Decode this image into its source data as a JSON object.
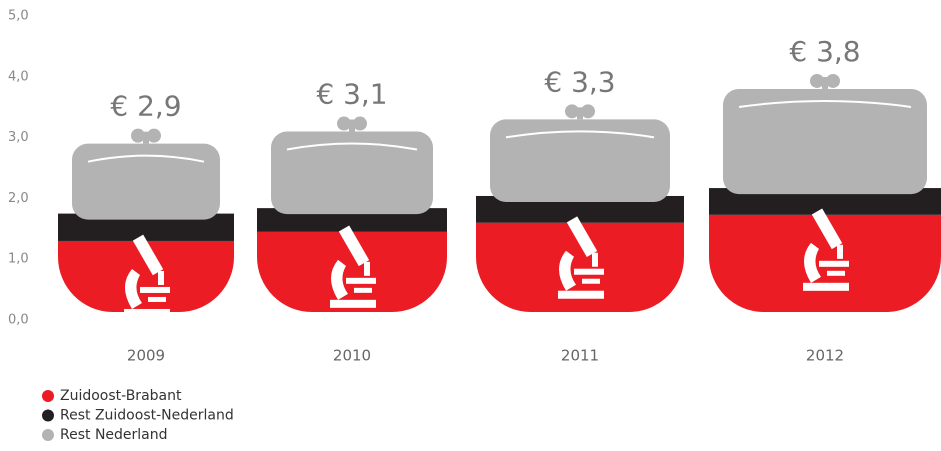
{
  "chart_data": {
    "type": "purse-stack",
    "categories": [
      "2009",
      "2010",
      "2011",
      "2012"
    ],
    "series": [
      {
        "name": "Zuidoost-Brabant",
        "color": "#ec1c24",
        "values": [
          1.3,
          1.45,
          1.6,
          1.73
        ]
      },
      {
        "name": "Rest Zuidoost-Nederland",
        "color": "#231f20",
        "values": [
          0.45,
          0.39,
          0.44,
          0.44
        ]
      },
      {
        "name": "Rest  Nederland",
        "color": "#b3b3b3",
        "values": [
          1.15,
          1.26,
          1.26,
          1.63
        ]
      }
    ],
    "totals": [
      2.9,
      3.1,
      3.3,
      3.8
    ],
    "total_labels": [
      "€ 2,9",
      "€ 3,1",
      "€ 3,3",
      "€ 3,8"
    ],
    "ylim": [
      0,
      5
    ],
    "yticks": [
      {
        "value": 0,
        "label": "0,0"
      },
      {
        "value": 1,
        "label": "1,0"
      },
      {
        "value": 2,
        "label": "2,0"
      },
      {
        "value": 3,
        "label": "3,0"
      },
      {
        "value": 4,
        "label": "4,0"
      },
      {
        "value": 5,
        "label": "5,0"
      }
    ]
  }
}
